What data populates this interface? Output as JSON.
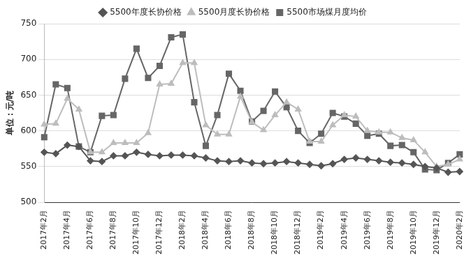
{
  "chart_data": {
    "type": "line",
    "y_label": "单位：元/吨",
    "categories": [
      "2017年2月",
      null,
      "2017年4月",
      null,
      "2017年6月",
      null,
      "2017年8月",
      null,
      "2017年10月",
      null,
      "2017年12月",
      null,
      "2018年2月",
      null,
      "2018年4月",
      null,
      "2018年6月",
      null,
      "2018年8月",
      null,
      "2018年10月",
      null,
      "2018年12月",
      null,
      "2019年2月",
      null,
      "2019年4月",
      null,
      "2019年6月",
      null,
      "2019年8月",
      null,
      "2019年10月",
      null,
      "2019年12月",
      null,
      "2020年2月"
    ],
    "series": [
      {
        "name": "5500年度长协价格",
        "color": "#555555",
        "marker": "diamond",
        "values": [
          570,
          568,
          580,
          578,
          558,
          557,
          565,
          565,
          570,
          567,
          565,
          566,
          566,
          565,
          562,
          558,
          557,
          558,
          555,
          554,
          555,
          557,
          555,
          553,
          551,
          554,
          560,
          562,
          560,
          558,
          556,
          555,
          553,
          550,
          548,
          542,
          543
        ]
      },
      {
        "name": "5500月度长协价格",
        "color": "#bdbdbd",
        "marker": "triangle",
        "values": [
          609,
          610,
          645,
          630,
          570,
          570,
          583,
          583,
          583,
          597,
          665,
          666,
          695,
          695,
          608,
          595,
          595,
          648,
          612,
          601,
          622,
          640,
          630,
          585,
          585,
          608,
          622,
          620,
          600,
          598,
          598,
          590,
          587,
          570,
          550,
          553,
          560
        ]
      },
      {
        "name": "5500市场煤月度均价",
        "color": "#666666",
        "marker": "square",
        "values": [
          591,
          665,
          660,
          578,
          570,
          621,
          622,
          673,
          715,
          674,
          691,
          731,
          735,
          640,
          579,
          622,
          680,
          656,
          613,
          628,
          655,
          633,
          600,
          583,
          596,
          625,
          620,
          610,
          593,
          596,
          579,
          580,
          570,
          546,
          545,
          555,
          567
        ]
      }
    ],
    "ylim": [
      500,
      750
    ],
    "yticks": [
      500,
      550,
      600,
      650,
      700,
      750
    ],
    "grid": true,
    "legend": "top"
  }
}
